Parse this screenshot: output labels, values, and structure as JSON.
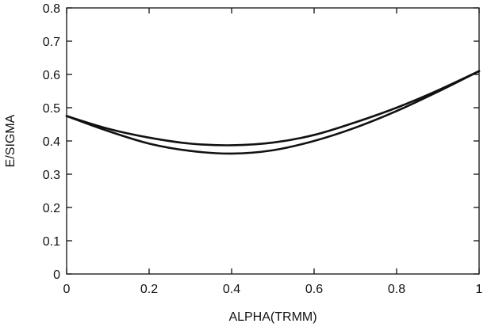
{
  "chart_data": {
    "type": "line",
    "title": "",
    "xlabel": "ALPHA(TRMM)",
    "ylabel": "E/SIGMA",
    "xlim": [
      0,
      1
    ],
    "ylim": [
      0,
      0.8
    ],
    "xticks": [
      "0",
      "0.2",
      "0.4",
      "0.6",
      "0.8",
      "1"
    ],
    "xtick_values": [
      0,
      0.2,
      0.4,
      0.6,
      0.8,
      1
    ],
    "yticks": [
      "0",
      "0.1",
      "0.2",
      "0.3",
      "0.4",
      "0.5",
      "0.6",
      "0.7",
      "0.8"
    ],
    "ytick_values": [
      0,
      0.1,
      0.2,
      0.3,
      0.4,
      0.5,
      0.6,
      0.7,
      0.8
    ],
    "grid": false,
    "legend": "none",
    "series": [
      {
        "x": [
          0,
          0.1,
          0.2,
          0.3,
          0.4,
          0.5,
          0.6,
          0.7,
          0.8,
          0.9,
          1
        ],
        "values": [
          0.475,
          0.437,
          0.41,
          0.392,
          0.387,
          0.395,
          0.418,
          0.456,
          0.5,
          0.552,
          0.61
        ]
      },
      {
        "x": [
          0,
          0.1,
          0.2,
          0.3,
          0.4,
          0.5,
          0.6,
          0.7,
          0.8,
          0.9,
          1
        ],
        "values": [
          0.475,
          0.43,
          0.392,
          0.37,
          0.362,
          0.372,
          0.4,
          0.44,
          0.49,
          0.548,
          0.61
        ]
      }
    ]
  }
}
